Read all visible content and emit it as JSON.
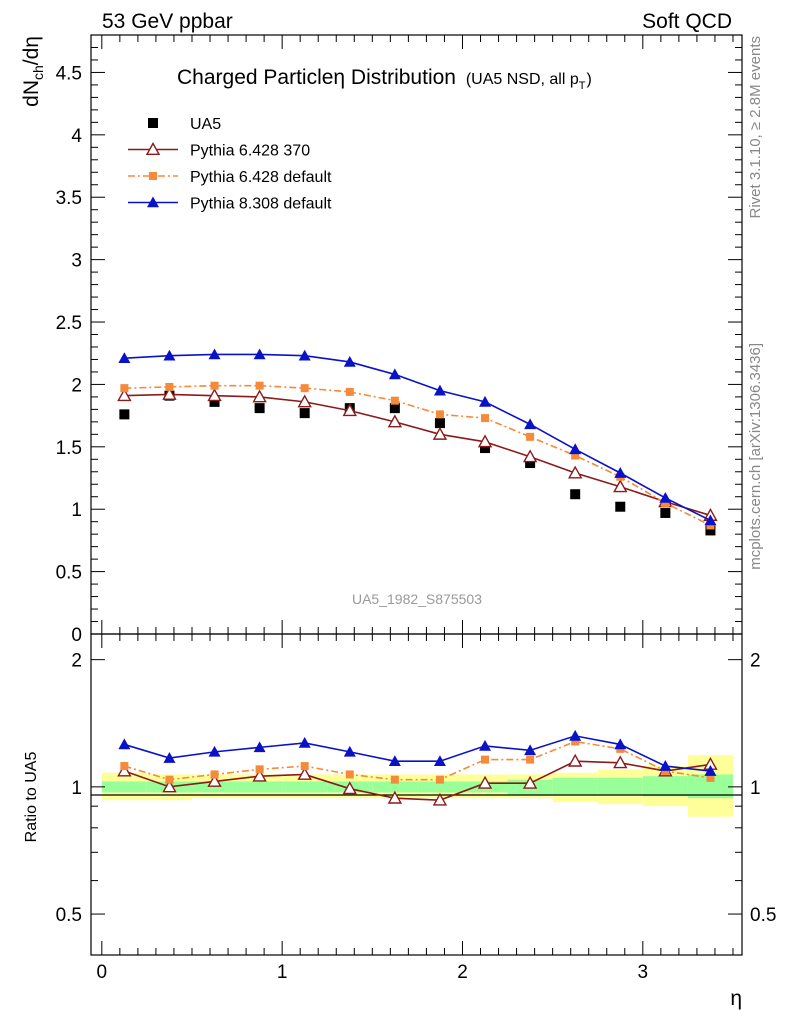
{
  "header": {
    "left_label": "53 GeV ppbar",
    "right_label": "Soft QCD"
  },
  "side_text": {
    "rivet": "Rivet 3.1.10, ≥ 2.8M events",
    "mcplots": "mcplots.cern.ch [arXiv:1306.3436]"
  },
  "chart_data": [
    {
      "type": "scatter",
      "panel": "main",
      "title": "Charged Particleη Distribution",
      "subtitle": "(UA5 NSD, all p",
      "subtitle_sub": "T",
      "subtitle_end": ")",
      "ylabel": "dN",
      "ylabel_sub": "ch",
      "ylabel_end": "/dη",
      "xlabel": "",
      "xlim": [
        -0.06,
        3.55
      ],
      "ylim": [
        0,
        4.8
      ],
      "yticks": [
        "0",
        "0.5",
        "1",
        "1.5",
        "2",
        "2.5",
        "3",
        "3.5",
        "4",
        "4.5"
      ],
      "watermark": "UA5_1982_S875503",
      "legend_position": "top-left",
      "x": [
        0.125,
        0.375,
        0.625,
        0.875,
        1.125,
        1.375,
        1.625,
        1.875,
        2.125,
        2.375,
        2.625,
        2.875,
        3.125,
        3.375
      ],
      "series": [
        {
          "name": "UA5",
          "style": "data",
          "color": "#000000",
          "values": [
            1.76,
            1.91,
            1.86,
            1.81,
            1.77,
            1.81,
            1.81,
            1.69,
            1.49,
            1.37,
            1.12,
            1.02,
            0.97,
            0.83
          ]
        },
        {
          "name": "Pythia 6.428 370",
          "style": "triangle-open",
          "color": "#8b1a1a",
          "values": [
            1.91,
            1.92,
            1.91,
            1.9,
            1.86,
            1.79,
            1.7,
            1.6,
            1.54,
            1.42,
            1.29,
            1.18,
            1.06,
            0.95
          ]
        },
        {
          "name": "Pythia 6.428 default",
          "style": "square-dashdot",
          "color": "#f58a3a",
          "values": [
            1.97,
            1.98,
            1.99,
            1.99,
            1.97,
            1.94,
            1.87,
            1.76,
            1.73,
            1.58,
            1.43,
            1.26,
            1.05,
            0.87
          ]
        },
        {
          "name": "Pythia 8.308 default",
          "style": "triangle-filled",
          "color": "#0a12c8",
          "values": [
            2.21,
            2.23,
            2.24,
            2.24,
            2.23,
            2.18,
            2.08,
            1.95,
            1.86,
            1.68,
            1.48,
            1.29,
            1.09,
            0.91
          ]
        }
      ]
    },
    {
      "type": "line",
      "panel": "ratio",
      "ylabel": "Ratio to UA5",
      "xlabel": "η",
      "xlim": [
        -0.06,
        3.55
      ],
      "ylim": [
        0.4,
        2.3
      ],
      "yscale": "log",
      "xticks": [
        "0",
        "1",
        "2",
        "3"
      ],
      "yticks": [
        "0.5",
        "1",
        "2"
      ],
      "x": [
        0.125,
        0.375,
        0.625,
        0.875,
        1.125,
        1.375,
        1.625,
        1.875,
        2.125,
        2.375,
        2.625,
        2.875,
        3.125,
        3.375
      ],
      "bands": {
        "outer_color": "#ffff99",
        "inner_color": "#99ff99",
        "bin_edges": [
          0.0,
          0.25,
          0.5,
          0.75,
          1.0,
          1.25,
          1.5,
          1.75,
          2.0,
          2.25,
          2.5,
          2.75,
          3.0,
          3.25,
          3.5
        ],
        "outer_lo": [
          0.93,
          0.93,
          0.94,
          0.94,
          0.94,
          0.94,
          0.94,
          0.94,
          0.94,
          0.94,
          0.92,
          0.91,
          0.9,
          0.85
        ],
        "outer_hi": [
          1.08,
          1.07,
          1.07,
          1.07,
          1.07,
          1.07,
          1.07,
          1.07,
          1.07,
          1.07,
          1.08,
          1.1,
          1.12,
          1.19
        ],
        "inner_lo": [
          0.97,
          0.97,
          0.97,
          0.97,
          0.97,
          0.97,
          0.97,
          0.97,
          0.97,
          0.96,
          0.96,
          0.96,
          0.95,
          0.94
        ],
        "inner_hi": [
          1.03,
          1.03,
          1.03,
          1.03,
          1.03,
          1.03,
          1.03,
          1.03,
          1.03,
          1.04,
          1.05,
          1.05,
          1.06,
          1.07
        ]
      },
      "series": [
        {
          "name": "Pythia 6.428 370",
          "style": "triangle-open",
          "color": "#8b1a1a",
          "values": [
            1.09,
            1.0,
            1.03,
            1.06,
            1.07,
            0.99,
            0.94,
            0.93,
            1.02,
            1.02,
            1.15,
            1.14,
            1.09,
            1.13
          ]
        },
        {
          "name": "Pythia 6.428 default",
          "style": "square-dashdot",
          "color": "#f58a3a",
          "values": [
            1.12,
            1.04,
            1.07,
            1.1,
            1.12,
            1.07,
            1.04,
            1.04,
            1.16,
            1.16,
            1.28,
            1.23,
            1.09,
            1.05
          ]
        },
        {
          "name": "Pythia 8.308 default",
          "style": "triangle-filled",
          "color": "#0a12c8",
          "values": [
            1.26,
            1.17,
            1.21,
            1.24,
            1.27,
            1.21,
            1.15,
            1.15,
            1.25,
            1.22,
            1.32,
            1.26,
            1.12,
            1.09
          ]
        }
      ]
    }
  ]
}
